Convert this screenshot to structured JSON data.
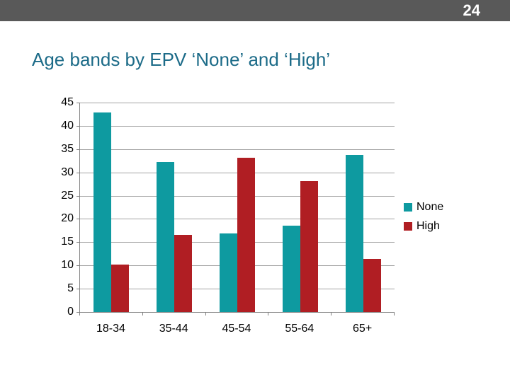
{
  "header": {
    "page_number": "24",
    "bar_color": "#595959"
  },
  "title": "Age bands by EPV ‘None’ and ‘High’",
  "colors": {
    "title_text": "#1C6B88",
    "axis_line": "#808080",
    "gridline": "#A3A3A3",
    "series_none": "#0E9AA0",
    "series_high": "#B01E23"
  },
  "chart_data": {
    "type": "bar",
    "title": "Age bands by EPV ‘None’ and ‘High’",
    "categories": [
      "18-34",
      "35-44",
      "45-54",
      "55-64",
      "65+"
    ],
    "series": [
      {
        "name": "None",
        "color": "#0E9AA0",
        "values": [
          42.8,
          32.2,
          16.9,
          18.6,
          33.8
        ]
      },
      {
        "name": "High",
        "color": "#B01E23",
        "values": [
          10.2,
          16.5,
          33.1,
          28.1,
          11.4
        ]
      }
    ],
    "xlabel": "",
    "ylabel": "",
    "ylim": [
      0,
      45
    ],
    "yticks": [
      0,
      5,
      10,
      15,
      20,
      25,
      30,
      35,
      40,
      45
    ],
    "grid": true,
    "legend_position": "right-middle"
  }
}
